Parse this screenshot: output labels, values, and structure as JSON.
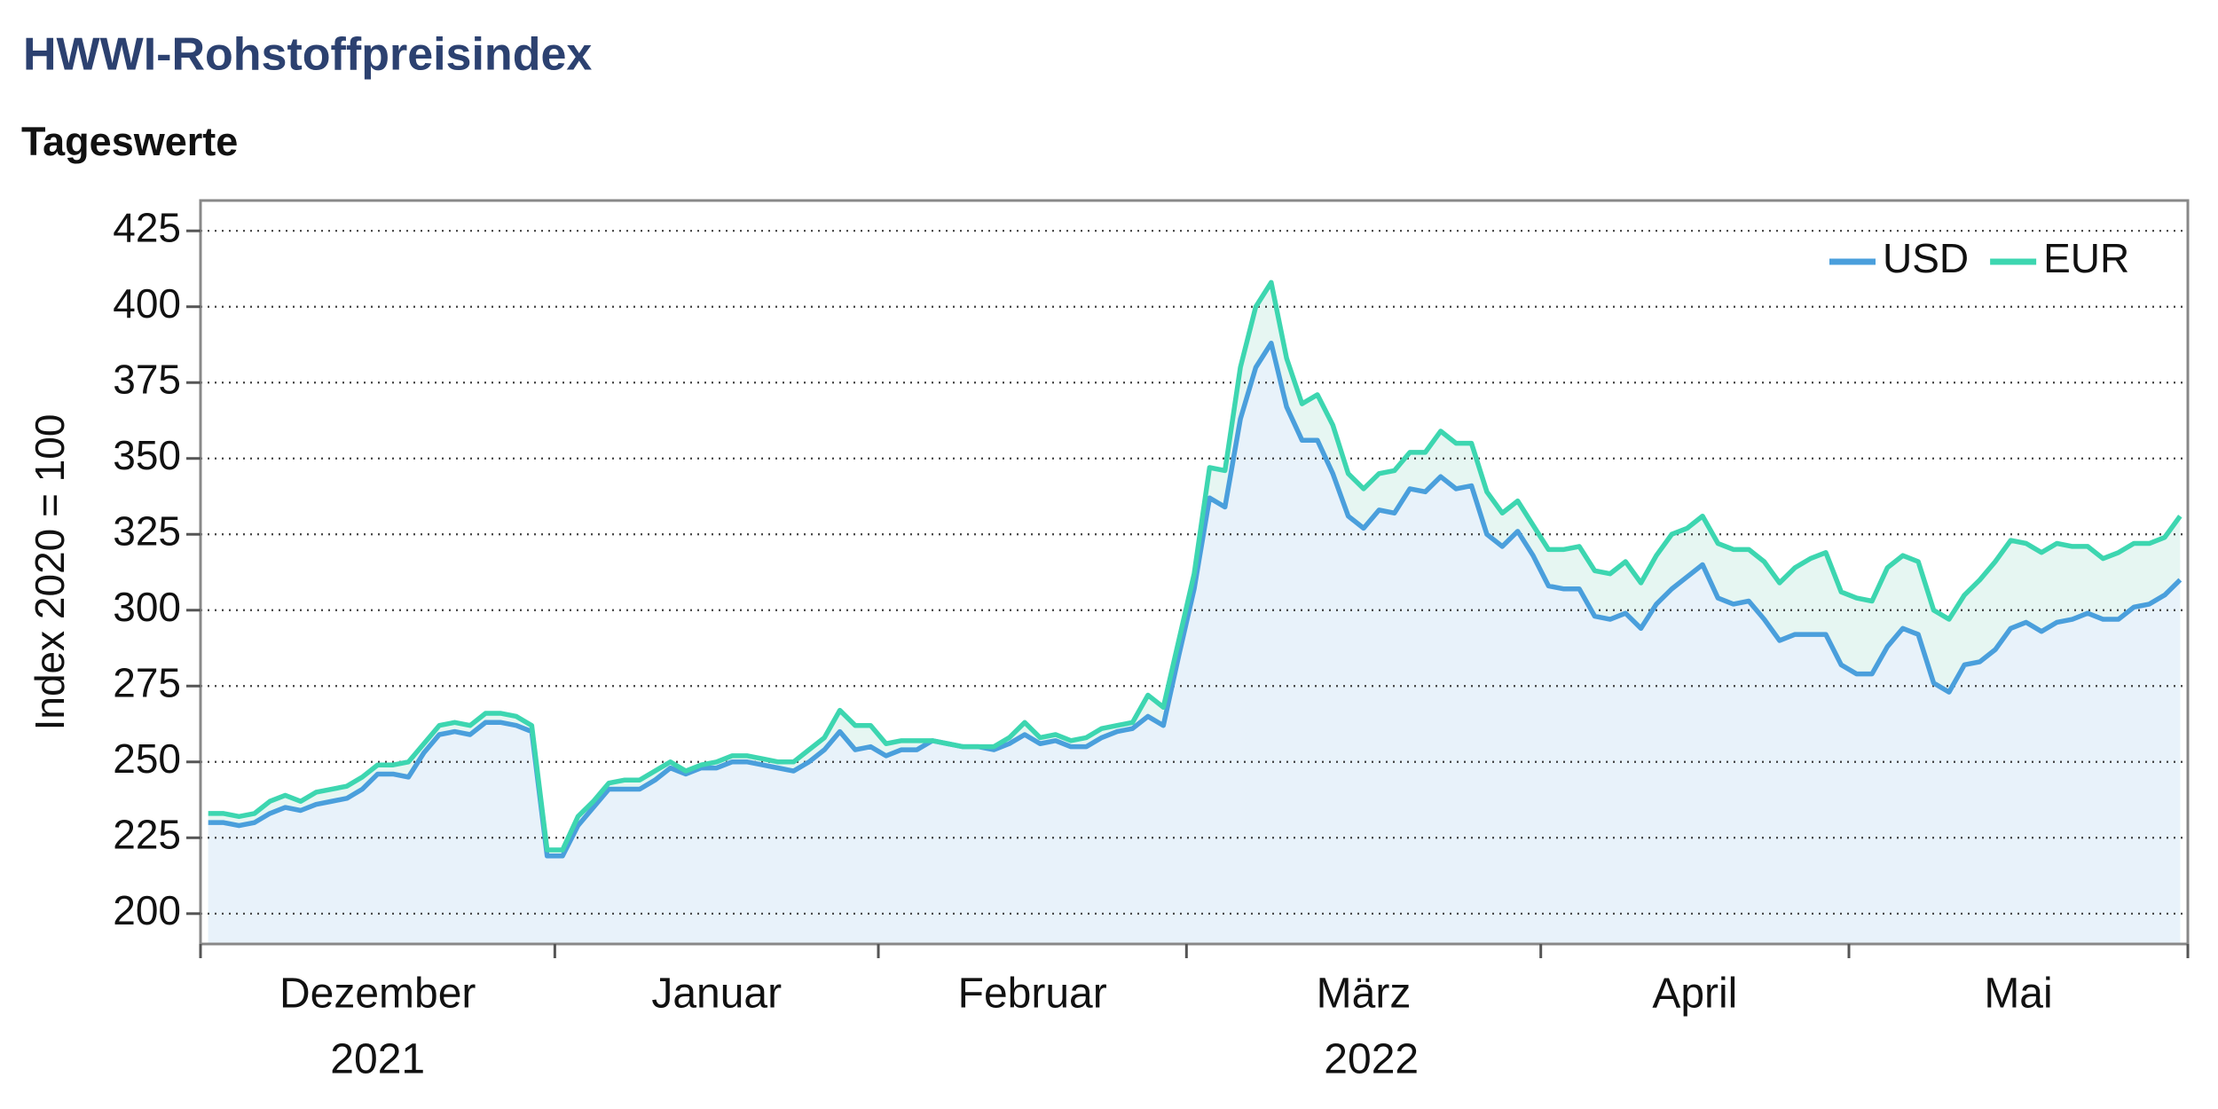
{
  "chart_data": {
    "type": "line",
    "title": "HWWI-Rohstoffpreisindex",
    "subtitle": "Tageswerte",
    "y_label": "Index 2020 = 100",
    "ylim": [
      190,
      435
    ],
    "yticks": [
      200,
      225,
      250,
      275,
      300,
      325,
      350,
      375,
      400,
      425
    ],
    "xlim": [
      0,
      129
    ],
    "xtick_marks": [
      0,
      23,
      44,
      64,
      87,
      107,
      129
    ],
    "months": [
      {
        "label": "Dezember",
        "start": 0,
        "end": 23
      },
      {
        "label": "Januar",
        "start": 23,
        "end": 44
      },
      {
        "label": "Februar",
        "start": 44,
        "end": 64
      },
      {
        "label": "März",
        "start": 64,
        "end": 87
      },
      {
        "label": "April",
        "start": 87,
        "end": 107
      },
      {
        "label": "Mai",
        "start": 107,
        "end": 129
      }
    ],
    "years": [
      {
        "label": "2021",
        "start": 0,
        "end": 23
      },
      {
        "label": "2022",
        "start": 23,
        "end": 129
      }
    ],
    "grid": true,
    "legend": "upper right",
    "series": [
      {
        "name": "USD",
        "color": "#4a9fdc",
        "fill": "#e8f2fa",
        "values": [
          230,
          230,
          229,
          230,
          233,
          235,
          234,
          236,
          237,
          238,
          241,
          246,
          246,
          245,
          253,
          259,
          260,
          259,
          263,
          263,
          262,
          260,
          219,
          219,
          229,
          235,
          241,
          241,
          241,
          244,
          248,
          246,
          248,
          248,
          250,
          250,
          249,
          248,
          247,
          250,
          254,
          260,
          254,
          255,
          252,
          254,
          254,
          257,
          256,
          255,
          255,
          254,
          256,
          259,
          256,
          257,
          255,
          255,
          258,
          260,
          261,
          265,
          262,
          285,
          307,
          337,
          334,
          363,
          380,
          388,
          367,
          356,
          356,
          345,
          331,
          327,
          333,
          332,
          340,
          339,
          344,
          340,
          341,
          325,
          321,
          326,
          318,
          308,
          307,
          307,
          298,
          297,
          299,
          294,
          302,
          307,
          311,
          315,
          304,
          302,
          303,
          297,
          290,
          292,
          292,
          292,
          282,
          279,
          279,
          288,
          294,
          292,
          276,
          273,
          282,
          283,
          287,
          294,
          296,
          293,
          296,
          297,
          299,
          297,
          297,
          301,
          302,
          305,
          310
        ]
      },
      {
        "name": "EUR",
        "color": "#3dd6b0",
        "fill": "#e6f6f2",
        "values": [
          233,
          233,
          232,
          233,
          237,
          239,
          237,
          240,
          241,
          242,
          245,
          249,
          249,
          250,
          256,
          262,
          263,
          262,
          266,
          266,
          265,
          262,
          221,
          221,
          232,
          237,
          243,
          244,
          244,
          247,
          250,
          247,
          249,
          250,
          252,
          252,
          251,
          250,
          250,
          254,
          258,
          267,
          262,
          262,
          256,
          257,
          257,
          257,
          256,
          255,
          255,
          255,
          258,
          263,
          258,
          259,
          257,
          258,
          261,
          262,
          263,
          272,
          268,
          290,
          312,
          347,
          346,
          380,
          400,
          408,
          383,
          368,
          371,
          361,
          345,
          340,
          345,
          346,
          352,
          352,
          359,
          355,
          355,
          339,
          332,
          336,
          328,
          320,
          320,
          321,
          313,
          312,
          316,
          309,
          318,
          325,
          327,
          331,
          322,
          320,
          320,
          316,
          309,
          314,
          317,
          319,
          306,
          304,
          303,
          314,
          318,
          316,
          300,
          297,
          305,
          310,
          316,
          323,
          322,
          319,
          322,
          321,
          321,
          317,
          319,
          322,
          322,
          324,
          331
        ]
      }
    ]
  }
}
